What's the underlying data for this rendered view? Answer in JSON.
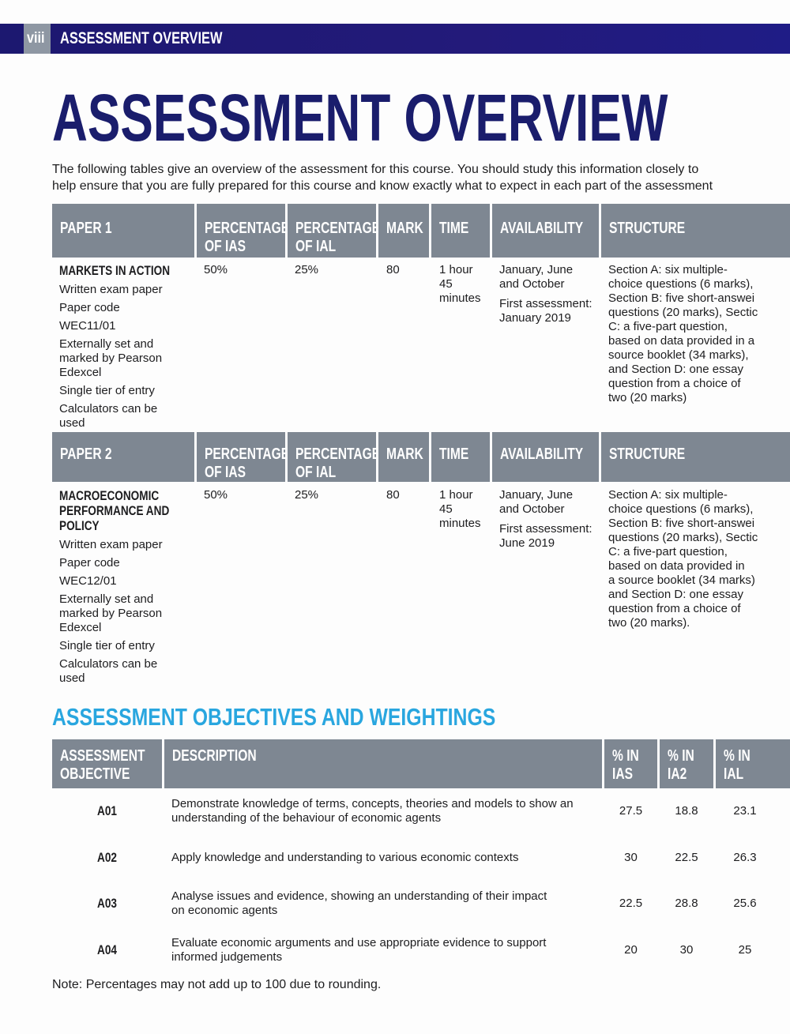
{
  "running_header": {
    "page_number": "viii",
    "title": "ASSESSMENT OVERVIEW"
  },
  "title": "ASSESSMENT OVERVIEW",
  "intro": [
    "The following tables give an overview of the assessment for this course. You should study this information closely to",
    "help ensure that you are fully prepared for this course and know exactly what to expect in each part of the assessment"
  ],
  "papers": [
    {
      "headers": {
        "paper": "PAPER 1",
        "ias": [
          "PERCENTAGE",
          "OF IAS"
        ],
        "ial": [
          "PERCENTAGE",
          "OF IAL"
        ],
        "mark": "MARK",
        "time": "TIME",
        "availability": "AVAILABILITY",
        "structure": "STRUCTURE"
      },
      "name_lines": [
        "MARKETS IN ACTION"
      ],
      "details": [
        [
          "Written exam paper"
        ],
        [
          "Paper code"
        ],
        [
          "WEC11/01"
        ],
        [
          "Externally set and",
          "marked by Pearson",
          "Edexcel"
        ],
        [
          "Single tier of entry"
        ],
        [
          "Calculators can be",
          "used"
        ]
      ],
      "ias": "50%",
      "ial": "25%",
      "mark": "80",
      "time_lines": [
        "1 hour",
        "45",
        "minutes"
      ],
      "availability": [
        [
          "January, June",
          "and October"
        ],
        [
          "First assessment:",
          "January 2019"
        ]
      ],
      "structure_lines": [
        "Section A: six multiple-",
        "choice questions (6 marks),",
        "Section B: five short-answei",
        "questions (20 marks), Sectic",
        "C: a five-part question,",
        "based on data provided in a",
        "source booklet (34 marks),",
        "and Section D: one essay",
        "question from a choice of",
        "two (20 marks)"
      ]
    },
    {
      "headers": {
        "paper": "PAPER 2",
        "ias": [
          "PERCENTAGE",
          "OF IAS"
        ],
        "ial": [
          "PERCENTAGE",
          "OF IAL"
        ],
        "mark": "MARK",
        "time": "TIME",
        "availability": "AVAILABILITY",
        "structure": "STRUCTURE"
      },
      "name_lines": [
        "MACROECONOMIC",
        "PERFORMANCE AND",
        "POLICY"
      ],
      "details": [
        [
          "Written exam paper"
        ],
        [
          "Paper code"
        ],
        [
          "WEC12/01"
        ],
        [
          "Externally set and",
          "marked by Pearson",
          "Edexcel"
        ],
        [
          "Single tier of entry"
        ],
        [
          "Calculators can be",
          "used"
        ]
      ],
      "ias": "50%",
      "ial": "25%",
      "mark": "80",
      "time_lines": [
        "1 hour",
        "45",
        "minutes"
      ],
      "availability": [
        [
          "January, June",
          "and October"
        ],
        [
          "First assessment:",
          "June 2019"
        ]
      ],
      "structure_lines": [
        "Section A: six multiple-",
        "choice questions (6 marks),",
        "Section B: five short-answei",
        "questions (20 marks), Sectic",
        "C: a five-part question,",
        "based on data provided in",
        "a source booklet (34 marks)",
        "and Section D: one essay",
        "question from a choice of",
        "two (20 marks)."
      ]
    }
  ],
  "objectives_heading": "ASSESSMENT OBJECTIVES AND WEIGHTINGS",
  "objectives": {
    "headers": {
      "objective": [
        "ASSESSMENT",
        "OBJECTIVE"
      ],
      "description": "DESCRIPTION",
      "ias": [
        "% IN",
        "IAS"
      ],
      "ia2": [
        "% IN",
        "IA2"
      ],
      "ial": [
        "% IN",
        "IAL"
      ]
    },
    "rows": [
      {
        "code": "A01",
        "desc": [
          "Demonstrate knowledge of terms, concepts, theories and models to show an",
          "understanding of the behaviour of economic agents"
        ],
        "ias": "27.5",
        "ia2": "18.8",
        "ial": "23.1"
      },
      {
        "code": "A02",
        "desc": [
          "Apply knowledge and understanding to various economic contexts"
        ],
        "ias": "30",
        "ia2": "22.5",
        "ial": "26.3"
      },
      {
        "code": "A03",
        "desc": [
          "Analyse issues and evidence, showing an understanding of their impact",
          "on economic agents"
        ],
        "ias": "22.5",
        "ia2": "28.8",
        "ial": "25.6"
      },
      {
        "code": "A04",
        "desc": [
          "Evaluate economic arguments and use appropriate evidence to support",
          "informed judgements"
        ],
        "ias": "20",
        "ia2": "30",
        "ial": "25"
      }
    ]
  },
  "note": "Note: Percentages may not add up to 100 due to rounding.",
  "colors": {
    "header_bar": "#1c1870",
    "title": "#1a1d6c",
    "table_header": "#7e8792",
    "section_heading": "#29a6df"
  }
}
